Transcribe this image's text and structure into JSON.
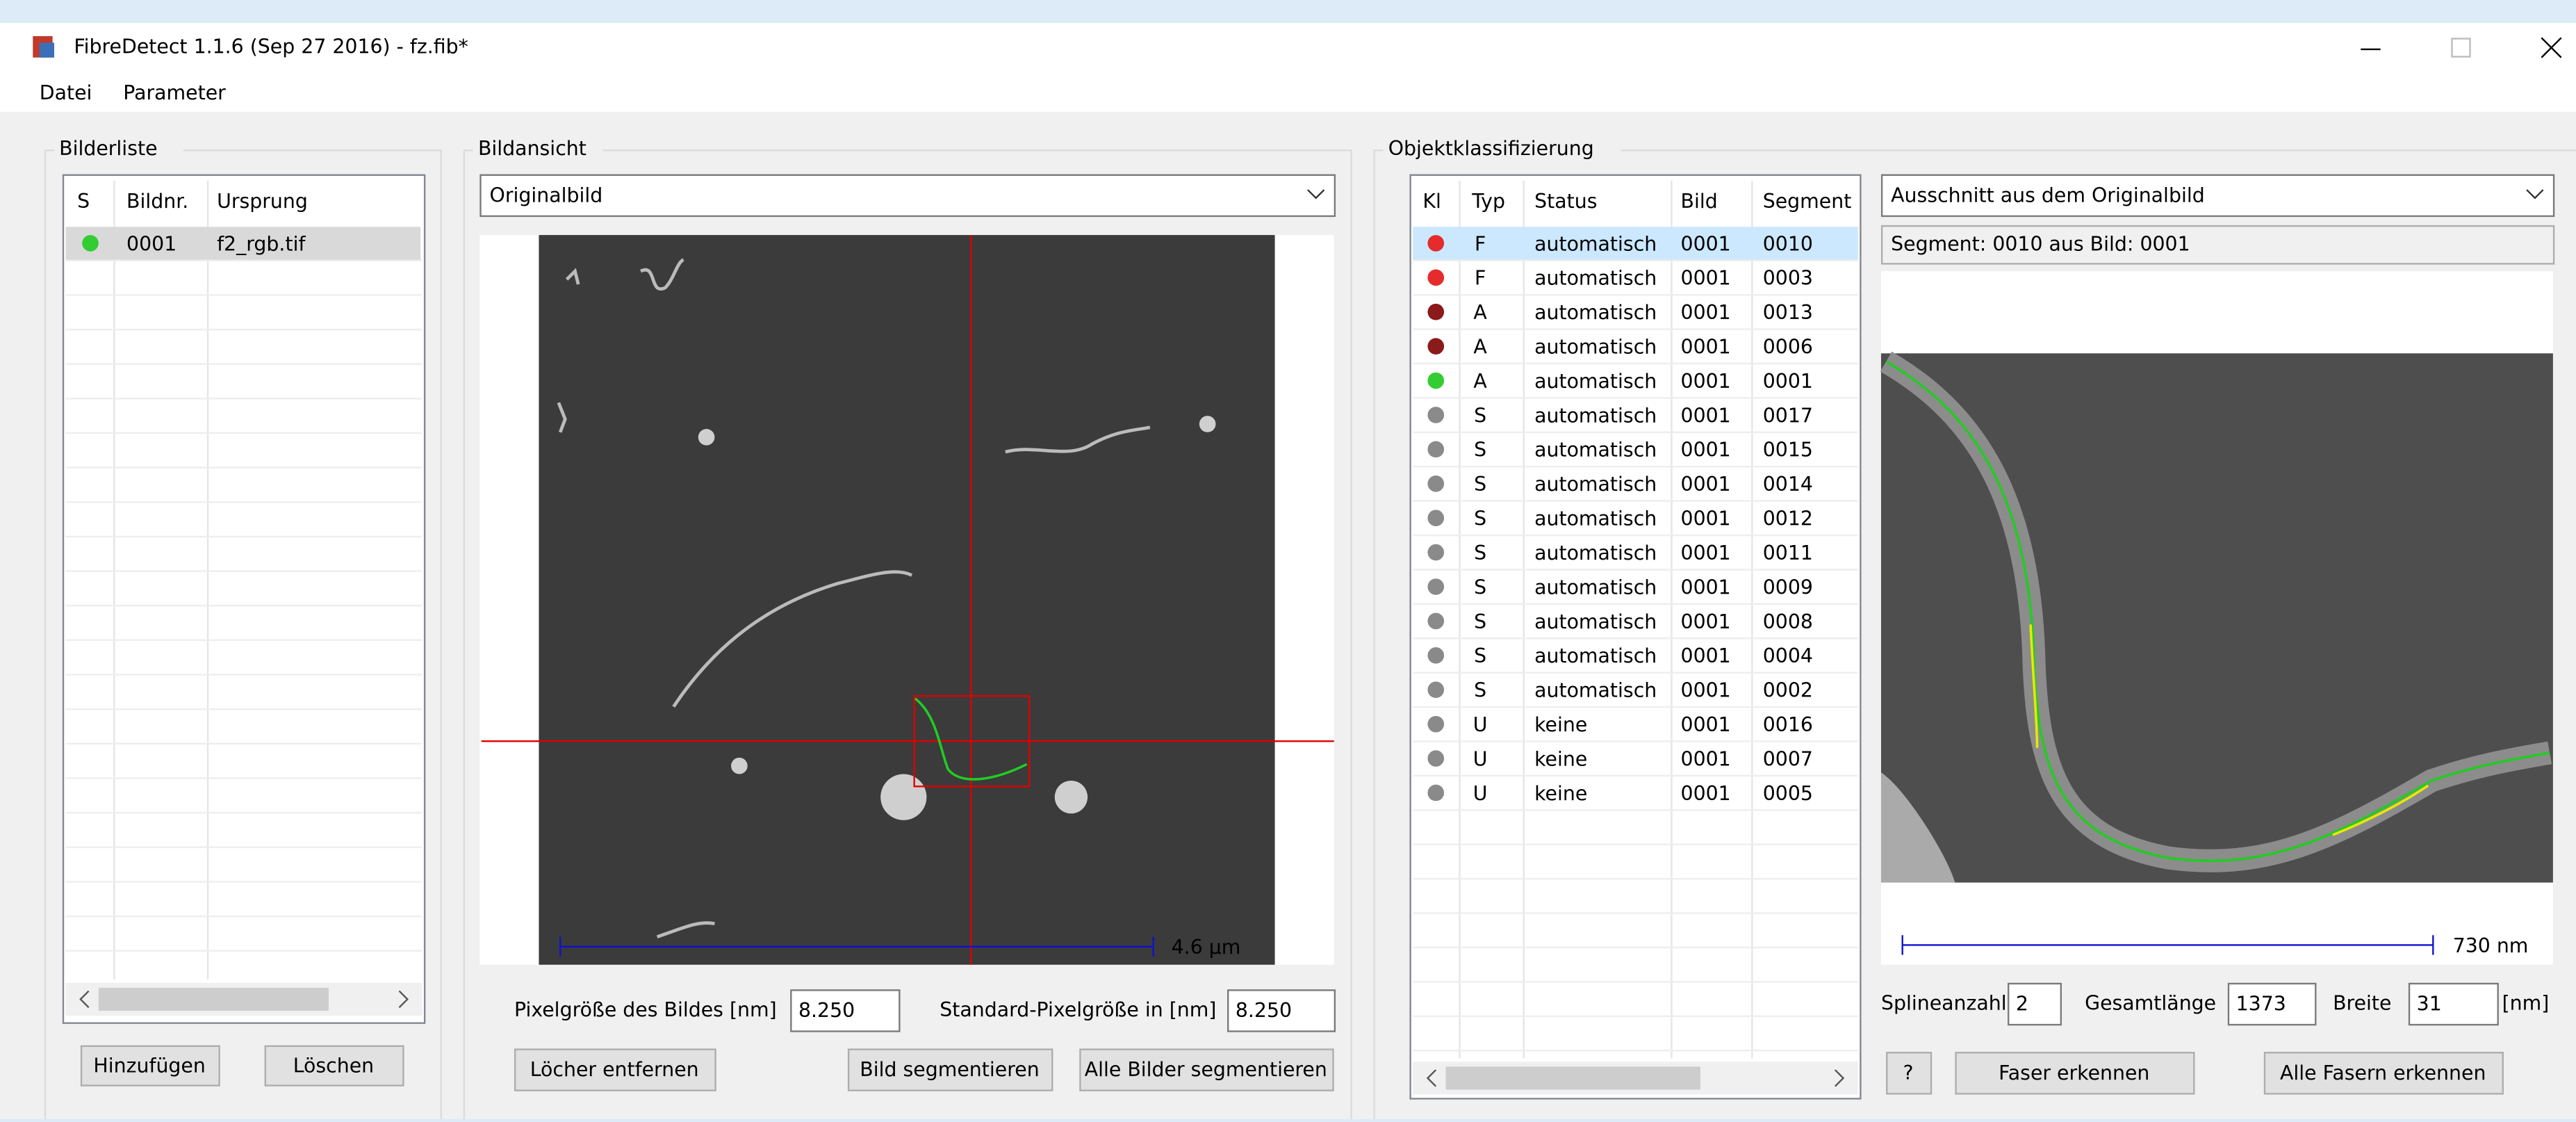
{
  "window": {
    "title": "FibreDetect 1.1.6 (Sep 27 2016) - fz.fib*"
  },
  "menu": [
    "Datei",
    "Parameter"
  ],
  "image_list": {
    "label": "Bilderliste",
    "columns": [
      "S",
      "Bildnr.",
      "Ursprung"
    ],
    "rows": [
      {
        "status_color": "#33cc33",
        "number": "0001",
        "origin": "f2_rgb.tif"
      }
    ],
    "buttons": [
      "Hinzufügen",
      "Löschen"
    ]
  },
  "image_view": {
    "label": "Bildansicht",
    "dropdown": "Originalbild",
    "scale_label": "4.6 µm",
    "pixel_size_label": "Pixelgröße des Bildes [nm]",
    "pixel_size": "8.250",
    "std_pixel_label": "Standard-Pixelgröße in [nm]",
    "std_pixel": "8.250",
    "buttons": [
      "Löcher entfernen",
      "Bild segmentieren",
      "Alle Bilder segmentieren"
    ]
  },
  "classification": {
    "label": "Objektklassifizierung",
    "columns": [
      "Kl",
      "Typ",
      "Status",
      "Bild",
      "Segment"
    ],
    "rows": [
      {
        "kl": "#e52b2b",
        "typ": "F",
        "status": "automatisch",
        "bild": "0001",
        "segment": "0010"
      },
      {
        "kl": "#e52b2b",
        "typ": "F",
        "status": "automatisch",
        "bild": "0001",
        "segment": "0003"
      },
      {
        "kl": "#8b1a1a",
        "typ": "A",
        "status": "automatisch",
        "bild": "0001",
        "segment": "0013"
      },
      {
        "kl": "#8b1a1a",
        "typ": "A",
        "status": "automatisch",
        "bild": "0001",
        "segment": "0006"
      },
      {
        "kl": "#33cc33",
        "typ": "A",
        "status": "automatisch",
        "bild": "0001",
        "segment": "0001"
      },
      {
        "kl": "#8a8a8a",
        "typ": "S",
        "status": "automatisch",
        "bild": "0001",
        "segment": "0017"
      },
      {
        "kl": "#8a8a8a",
        "typ": "S",
        "status": "automatisch",
        "bild": "0001",
        "segment": "0015"
      },
      {
        "kl": "#8a8a8a",
        "typ": "S",
        "status": "automatisch",
        "bild": "0001",
        "segment": "0014"
      },
      {
        "kl": "#8a8a8a",
        "typ": "S",
        "status": "automatisch",
        "bild": "0001",
        "segment": "0012"
      },
      {
        "kl": "#8a8a8a",
        "typ": "S",
        "status": "automatisch",
        "bild": "0001",
        "segment": "0011"
      },
      {
        "kl": "#8a8a8a",
        "typ": "S",
        "status": "automatisch",
        "bild": "0001",
        "segment": "0009"
      },
      {
        "kl": "#8a8a8a",
        "typ": "S",
        "status": "automatisch",
        "bild": "0001",
        "segment": "0008"
      },
      {
        "kl": "#8a8a8a",
        "typ": "S",
        "status": "automatisch",
        "bild": "0001",
        "segment": "0004"
      },
      {
        "kl": "#8a8a8a",
        "typ": "S",
        "status": "automatisch",
        "bild": "0001",
        "segment": "0002"
      },
      {
        "kl": "#8a8a8a",
        "typ": "U",
        "status": "keine",
        "bild": "0001",
        "segment": "0016"
      },
      {
        "kl": "#8a8a8a",
        "typ": "U",
        "status": "keine",
        "bild": "0001",
        "segment": "0007"
      },
      {
        "kl": "#8a8a8a",
        "typ": "U",
        "status": "keine",
        "bild": "0001",
        "segment": "0005"
      }
    ]
  },
  "detail": {
    "dropdown": "Ausschnitt aus dem Originalbild",
    "segment_info": "Segment: 0010 aus Bild: 0001",
    "scale_label": "730 nm",
    "spline_label": "Splineanzahl",
    "spline": "2",
    "length_label": "Gesamtlänge",
    "length": "1373",
    "width_label": "Breite",
    "width": "31",
    "unit": "[nm]",
    "buttons": [
      "?",
      "Faser erkennen",
      "Alle Fasern erkennen"
    ]
  }
}
